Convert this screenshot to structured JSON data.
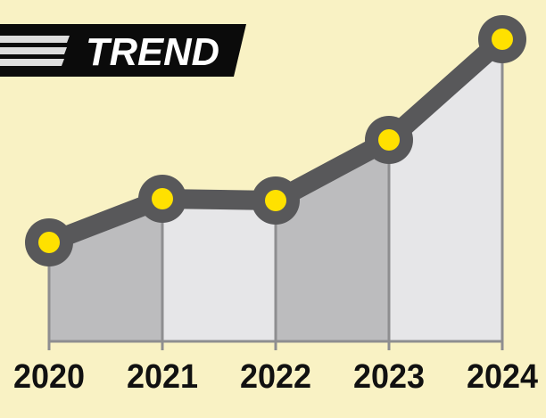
{
  "chart_data": {
    "type": "line",
    "title": "TREND",
    "categories": [
      "2020",
      "2021",
      "2022",
      "2023",
      "2024"
    ],
    "values": [
      111,
      160,
      158,
      226,
      339
    ],
    "ylim": [
      0,
      383
    ],
    "line_color": "#58585a",
    "marker_color": "#ffe100",
    "area_colors": [
      "#bcbcbe",
      "#e6e6e8"
    ],
    "background": "#f9f2c4"
  }
}
